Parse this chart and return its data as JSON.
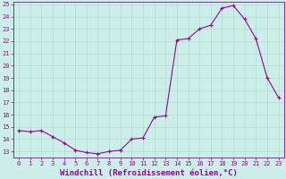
{
  "x": [
    0,
    1,
    2,
    3,
    4,
    5,
    6,
    7,
    8,
    9,
    10,
    11,
    12,
    13,
    14,
    15,
    16,
    17,
    18,
    19,
    20,
    21,
    22,
    23
  ],
  "y": [
    14.7,
    14.6,
    14.7,
    14.2,
    13.7,
    13.1,
    12.9,
    12.8,
    13.0,
    13.1,
    14.0,
    14.1,
    15.8,
    15.9,
    22.1,
    22.2,
    23.0,
    23.3,
    24.7,
    24.9,
    23.8,
    22.2,
    19.0,
    17.4
  ],
  "line_color": "#990099",
  "marker": "+",
  "marker_size": 3,
  "bg_color": "#cceee8",
  "grid_color": "#aaddcc",
  "xlabel": "Windchill (Refroidissement éolien,°C)",
  "xlabel_color": "#990099",
  "ylim_min": 12.5,
  "ylim_max": 25.2,
  "xlim_min": -0.5,
  "xlim_max": 23.5,
  "yticks": [
    13,
    14,
    15,
    16,
    17,
    18,
    19,
    20,
    21,
    22,
    23,
    24,
    25
  ],
  "xticks": [
    0,
    1,
    2,
    3,
    4,
    5,
    6,
    7,
    8,
    9,
    10,
    11,
    12,
    13,
    14,
    15,
    16,
    17,
    18,
    19,
    20,
    21,
    22,
    23
  ],
  "tick_label_color": "#990099",
  "spine_color": "#990099",
  "font_size": 5,
  "xlabel_font_size": 6.5
}
